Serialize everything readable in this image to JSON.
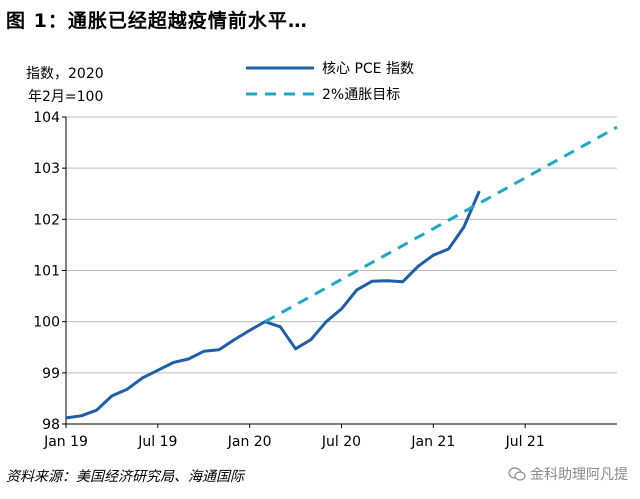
{
  "header": {
    "title": "图 1：通胀已经超越疫情前水平…"
  },
  "footer": {
    "source": "资料来源：美国经济研究局、海通国际",
    "watermark": "金科助理阿凡提"
  },
  "chart_data": {
    "type": "line",
    "ylabel_lines": [
      "指数，2020",
      "年2月=100"
    ],
    "ylim": [
      98,
      104
    ],
    "yticks": [
      98,
      99,
      100,
      101,
      102,
      103,
      104
    ],
    "xticks": [
      "Jan 19",
      "Jul 19",
      "Jan 20",
      "Jul 20",
      "Jan 21",
      "Jul 21"
    ],
    "xtick_months": [
      0,
      6,
      12,
      18,
      24,
      30
    ],
    "xlim_months": [
      0,
      36
    ],
    "grid": "horizontal",
    "legend": "top-right",
    "series": [
      {
        "name": "核心 PCE 指数",
        "style": "solid",
        "color": "#1f5ea8",
        "points": [
          [
            0,
            98.12
          ],
          [
            1,
            98.16
          ],
          [
            2,
            98.27
          ],
          [
            3,
            98.55
          ],
          [
            4,
            98.68
          ],
          [
            5,
            98.9
          ],
          [
            6,
            99.05
          ],
          [
            7,
            99.2
          ],
          [
            8,
            99.27
          ],
          [
            9,
            99.42
          ],
          [
            10,
            99.45
          ],
          [
            11,
            99.65
          ],
          [
            12,
            99.83
          ],
          [
            13,
            100.0
          ],
          [
            14,
            99.9
          ],
          [
            15,
            99.47
          ],
          [
            16,
            99.65
          ],
          [
            17,
            100.0
          ],
          [
            18,
            100.25
          ],
          [
            19,
            100.62
          ],
          [
            20,
            100.79
          ],
          [
            21,
            100.8
          ],
          [
            22,
            100.78
          ],
          [
            23,
            101.08
          ],
          [
            24,
            101.3
          ],
          [
            25,
            101.42
          ],
          [
            26,
            101.85
          ],
          [
            27,
            102.55
          ]
        ]
      },
      {
        "name": "2%通胀目标",
        "style": "dashed",
        "color": "#1ea8c8",
        "points": [
          [
            13,
            100.0
          ],
          [
            36,
            103.8
          ]
        ]
      }
    ]
  }
}
